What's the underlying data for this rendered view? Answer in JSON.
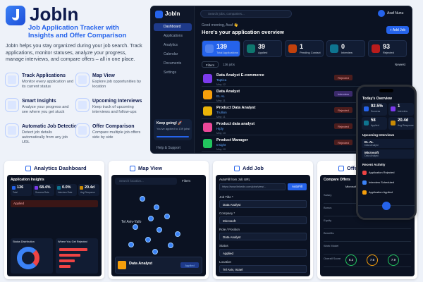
{
  "brand": {
    "name": "JobIn",
    "tagline": "Job Application Tracker with Insights and Offer Comparison",
    "description": "JobIn helps you stay organized during your job search. Track applications, monitor statuses, analyze your progress, manage interviews, and compare offers – all in one place."
  },
  "features": [
    {
      "title": "Track Applications",
      "text": "Monitor every application and its current status"
    },
    {
      "title": "Map View",
      "text": "Explore job opportunities by location"
    },
    {
      "title": "Smart Insights",
      "text": "Analyze your progress and see where you get stuck"
    },
    {
      "title": "Upcoming Interviews",
      "text": "Keep track of upcoming interviews and follow-ups"
    },
    {
      "title": "Automatic Job Detection",
      "text": "Detect job details automatically from any job URL"
    },
    {
      "title": "Offer Comparison",
      "text": "Compare multiple job offers side by side"
    }
  ],
  "dashboard": {
    "logo": "JobIn",
    "search": "Search jobs, companies...",
    "user": "Asaf Nunu",
    "nav": [
      "Dashboard",
      "Applications",
      "Analytics",
      "Calendar",
      "Documents",
      "Settings"
    ],
    "greeting": "Good morning, Asaf 👋",
    "heading": "Here's your application overview",
    "add_button": "+ Add Job",
    "stats": [
      {
        "value": 139,
        "label": "Total Applications"
      },
      {
        "value": 39,
        "label": "Applied"
      },
      {
        "value": 1,
        "label": "Pending Contact"
      },
      {
        "value": 0,
        "label": "Interview"
      },
      {
        "value": 93,
        "label": "Rejected"
      }
    ],
    "filters": "Filters",
    "job_count": "136 jobs",
    "sort": "Newest",
    "jobs": [
      {
        "title": "Data Analyst E-commerce",
        "company": "Taptica",
        "date": "May 12",
        "status": "Rejected"
      },
      {
        "title": "Data Analyst",
        "company": "EL AL",
        "date": "May 11",
        "status": "Interview"
      },
      {
        "title": "Product Data Analyst",
        "company": "Trullion",
        "date": "May 11",
        "status": "Rejected"
      },
      {
        "title": "Product data analyst",
        "company": "Hiply",
        "date": "May 10",
        "status": "Rejected"
      },
      {
        "title": "Product Manager",
        "company": "Insight",
        "date": "May 10",
        "status": "Rejected"
      }
    ],
    "keep_going": "Keep going! 🚀",
    "progress": "You've applied to 139 jobs!",
    "help": "Help & Support"
  },
  "phone": {
    "overview": "Today's Overview",
    "stats": [
      {
        "value": "92.5%",
        "label": "Success"
      },
      {
        "value": "1",
        "label": "Interview"
      },
      {
        "value": "58",
        "label": "Applied"
      },
      {
        "value": "20.4d",
        "label": "Avg Response"
      }
    ],
    "interviews_title": "Upcoming Interviews",
    "interviews": [
      {
        "company": "EL AL",
        "role": "Data Analyst"
      },
      {
        "company": "Microsoft",
        "role": "Data Analyst"
      }
    ],
    "activity_title": "Recent Activity",
    "activity": [
      "Application Rejected",
      "Interview Scheduled",
      "Application Applied"
    ]
  },
  "cards": {
    "analytics": {
      "title": "Analytics Dashboard",
      "heading": "Application Insights",
      "stats": [
        {
          "value": "136",
          "label": "Total"
        },
        {
          "value": "68.4%",
          "label": "Success Rate"
        },
        {
          "value": "0.0%",
          "label": "Interview Rate"
        },
        {
          "value": "20.4d",
          "label": "Avg Response"
        }
      ],
      "status_row": "Applied",
      "chart1": "Status Distribution",
      "chart2": "Where You Get Rejected"
    },
    "map": {
      "title": "Map View",
      "search": "Search location...",
      "filters": "Filters",
      "city": "Tel Aviv-Yafo",
      "job": "Data Analyst",
      "status": "Applied"
    },
    "add_job": {
      "title": "Add Job",
      "autofill_label": "AutoFill from Job URL",
      "url": "https://www.linkedin.com/jobs/view/...",
      "autofill_button": "AutoFill",
      "fields": [
        {
          "label": "Job Title *",
          "value": "Data Analyst"
        },
        {
          "label": "Company *",
          "value": "Microsoft"
        },
        {
          "label": "Role / Position",
          "value": "Data Analyst"
        },
        {
          "label": "Status",
          "value": "Applied"
        },
        {
          "label": "Location",
          "value": "Tel Aviv, Israel"
        }
      ]
    },
    "offers": {
      "title": "Offer Comparison",
      "heading": "Compare Offers",
      "companies": [
        "Microsoft",
        "Amazon",
        "Monday.com"
      ],
      "rows": [
        "Salary",
        "Bonus",
        "Equity",
        "Benefits",
        "Work Model",
        "Overall Score"
      ],
      "scores": [
        "8.2",
        "7.6",
        "7.9"
      ]
    }
  }
}
